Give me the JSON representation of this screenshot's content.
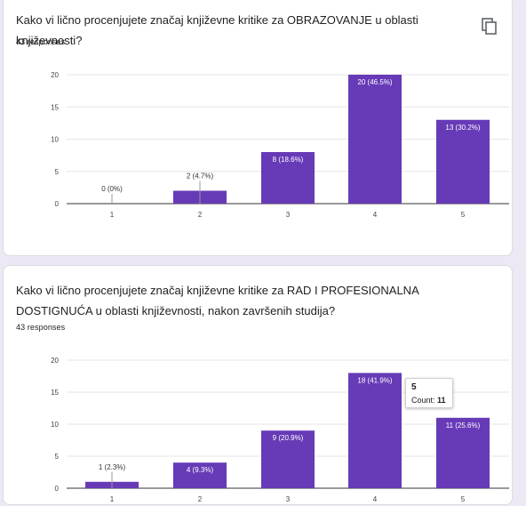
{
  "questions": [
    {
      "title": "Kako vi lično procenjujete značaj književne kritike za OBRAZOVANJE u oblasti književnosti?",
      "responses": "43 responses",
      "copy_icon": "copy-icon"
    },
    {
      "title": "Kako vi lično procenjujete značaj književne kritike za RAD I PROFESIONALNA DOSTIGNUĆA u oblasti književnosti, nakon završenih studija?",
      "responses": "43 responses"
    }
  ],
  "tooltip": {
    "category": "5",
    "label": "Count:",
    "value": "11"
  },
  "colors": {
    "bar": "#673ab7",
    "accent": "#673ab7"
  },
  "chart_data": [
    {
      "type": "bar",
      "categories": [
        "1",
        "2",
        "3",
        "4",
        "5"
      ],
      "values": [
        0,
        2,
        8,
        20,
        13
      ],
      "data_labels": [
        "0 (0%)",
        "2 (4.7%)",
        "8 (18.6%)",
        "20 (46.5%)",
        "13 (30.2%)"
      ],
      "yticks": [
        "0",
        "5",
        "10",
        "15",
        "20"
      ],
      "ylim": [
        0,
        20
      ],
      "title": "",
      "xlabel": "",
      "ylabel": ""
    },
    {
      "type": "bar",
      "categories": [
        "1",
        "2",
        "3",
        "4",
        "5"
      ],
      "values": [
        1,
        4,
        9,
        18,
        11
      ],
      "data_labels": [
        "1 (2.3%)",
        "4 (9.3%)",
        "9 (20.9%)",
        "18 (41.9%)",
        "11 (25.6%)"
      ],
      "yticks": [
        "0",
        "5",
        "10",
        "15",
        "20"
      ],
      "ylim": [
        0,
        20
      ],
      "title": "",
      "xlabel": "",
      "ylabel": ""
    }
  ]
}
